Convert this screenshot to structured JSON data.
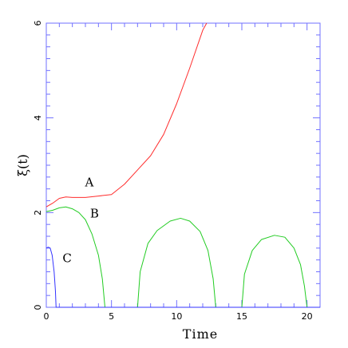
{
  "chart_data": {
    "type": "line",
    "title": "",
    "xlabel": "Time",
    "ylabel": "ξ(t)",
    "xlim": [
      0,
      21
    ],
    "ylim": [
      0,
      6
    ],
    "x_ticks": [
      0,
      5,
      10,
      15,
      20
    ],
    "y_ticks": [
      0,
      2,
      4,
      6
    ],
    "grid": false,
    "series": [
      {
        "name": "A",
        "color": "#ff2d2d",
        "points": [
          [
            0,
            2.12
          ],
          [
            0.5,
            2.2
          ],
          [
            1,
            2.3
          ],
          [
            1.5,
            2.33
          ],
          [
            2,
            2.32
          ],
          [
            3,
            2.32
          ],
          [
            4,
            2.35
          ],
          [
            5,
            2.38
          ],
          [
            6,
            2.6
          ],
          [
            7,
            2.9
          ],
          [
            8,
            3.2
          ],
          [
            9,
            3.65
          ],
          [
            10,
            4.3
          ],
          [
            11,
            5.05
          ],
          [
            12,
            5.85
          ],
          [
            12.3,
            6.0
          ]
        ]
      },
      {
        "name": "B",
        "color": "#22cc22",
        "points": [
          [
            0,
            2.02
          ],
          [
            0.5,
            2.05
          ],
          [
            1,
            2.1
          ],
          [
            1.5,
            2.12
          ],
          [
            2,
            2.08
          ],
          [
            2.5,
            2.0
          ],
          [
            3,
            1.85
          ],
          [
            3.5,
            1.55
          ],
          [
            4,
            1.1
          ],
          [
            4.3,
            0.6
          ],
          [
            4.5,
            0.0
          ],
          [
            4.5,
            0.0
          ],
          [
            7.0,
            0.0
          ],
          [
            7.0,
            0.0
          ],
          [
            7.2,
            0.75
          ],
          [
            7.8,
            1.35
          ],
          [
            8.5,
            1.62
          ],
          [
            9.5,
            1.82
          ],
          [
            10.3,
            1.88
          ],
          [
            11,
            1.82
          ],
          [
            11.8,
            1.6
          ],
          [
            12.4,
            1.2
          ],
          [
            12.8,
            0.6
          ],
          [
            13.0,
            0.0
          ],
          [
            13.0,
            0.0
          ],
          [
            15.0,
            0.0
          ],
          [
            15.0,
            0.0
          ],
          [
            15.2,
            0.7
          ],
          [
            15.8,
            1.2
          ],
          [
            16.5,
            1.43
          ],
          [
            17.5,
            1.52
          ],
          [
            18.3,
            1.48
          ],
          [
            19.0,
            1.25
          ],
          [
            19.5,
            0.9
          ],
          [
            19.8,
            0.45
          ],
          [
            20.0,
            0.0
          ]
        ]
      },
      {
        "name": "C",
        "color": "#3333ff",
        "points": [
          [
            0,
            1.25
          ],
          [
            0.15,
            1.27
          ],
          [
            0.3,
            1.25
          ],
          [
            0.45,
            1.1
          ],
          [
            0.6,
            0.75
          ],
          [
            0.7,
            0.35
          ],
          [
            0.75,
            0.0
          ],
          [
            21,
            0.0
          ]
        ]
      }
    ],
    "curve_labels": [
      {
        "text": "A",
        "x": 3.3,
        "y": 2.55
      },
      {
        "text": "B",
        "x": 3.7,
        "y": 1.9
      },
      {
        "text": "C",
        "x": 1.6,
        "y": 0.95
      }
    ]
  }
}
